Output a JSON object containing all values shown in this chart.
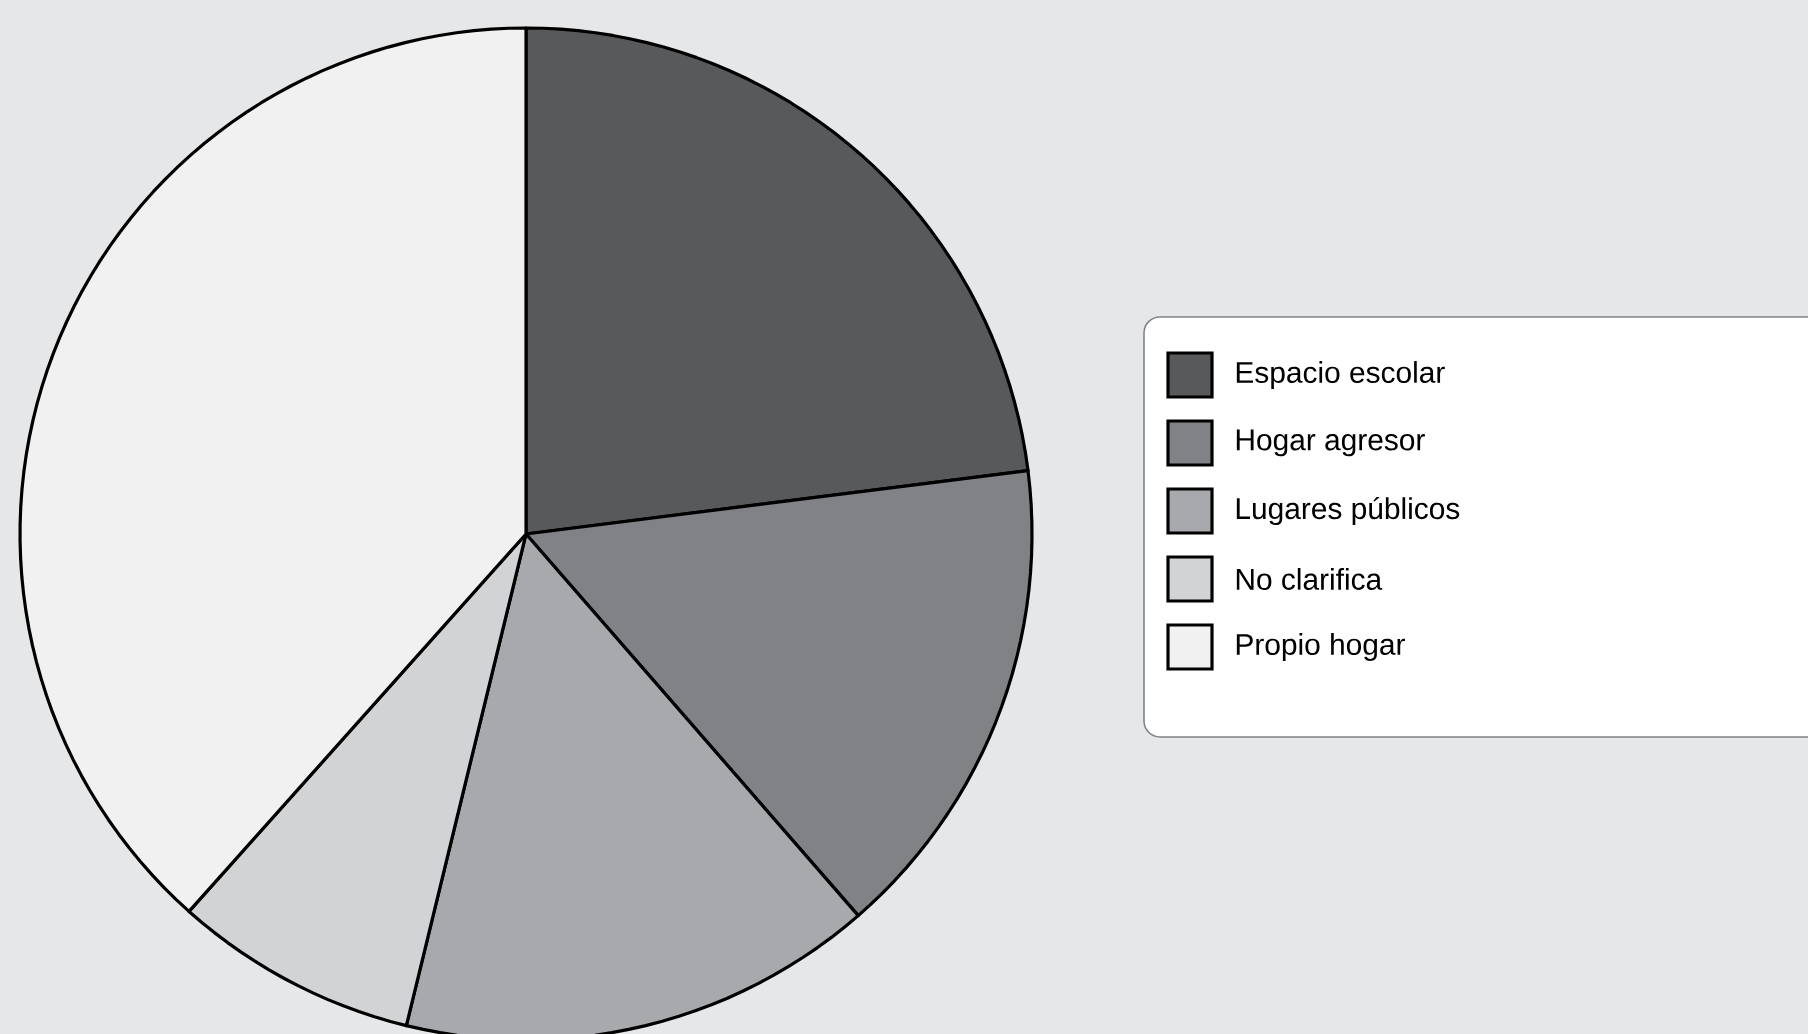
{
  "chart_data": {
    "type": "pie",
    "categories": [
      "Espacio escolar",
      "Hogar agresor",
      "Lugares públicos",
      "No clarifica",
      "Propio hogar"
    ],
    "values": [
      23.0,
      15.6,
      15.2,
      7.8,
      38.4
    ],
    "colors": [
      "#58595b",
      "#808285",
      "#a7a9ac",
      "#d1d3d4",
      "#f1f1f2"
    ],
    "legend": "right"
  }
}
